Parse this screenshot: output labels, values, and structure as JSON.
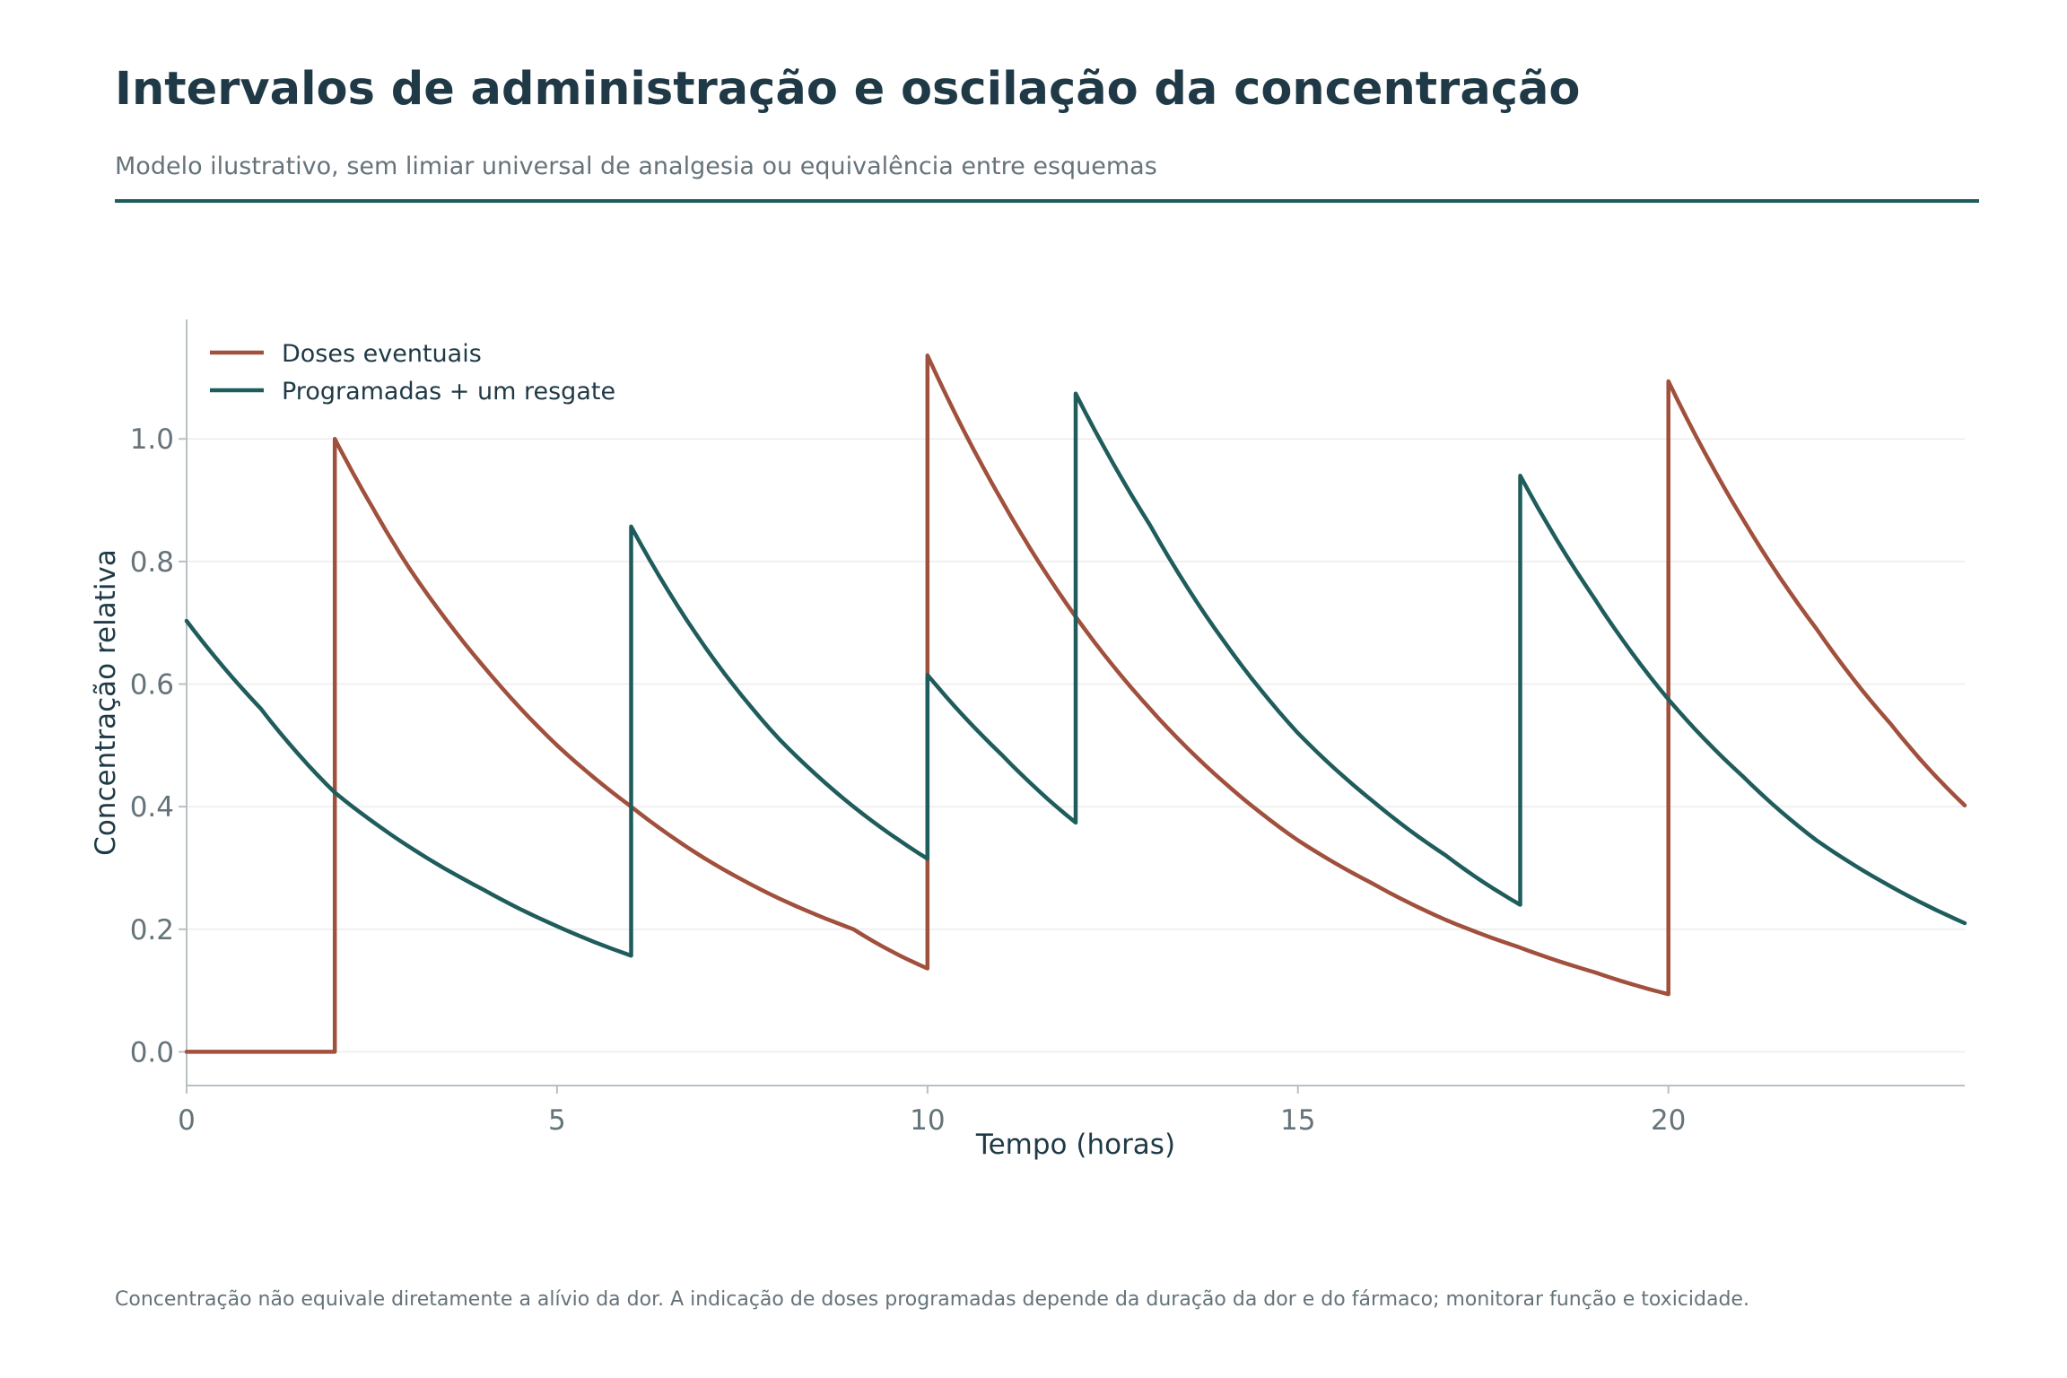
{
  "header": {
    "title": "Intervalos de administração e oscilação da concentração",
    "subtitle": "Modelo ilustrativo, sem limiar universal de analgesia ou equivalência entre esquemas"
  },
  "footnote": "Concentração não equivale diretamente a alívio da dor. A indicação de doses programadas depende da duração da dor e do fármaco; monitorar função e toxicidade.",
  "colors": {
    "doses_eventuais": "#a0503c",
    "programadas": "#1f5c5c",
    "title": "#1f3a46",
    "muted": "#65737a",
    "grid": "#ececec",
    "axis": "#b9c0c3"
  },
  "chart_data": {
    "type": "line",
    "xlabel": "Tempo (horas)",
    "ylabel": "Concentração relativa",
    "xlim": [
      0,
      24
    ],
    "ylim": [
      -0.055,
      1.195
    ],
    "xticks": [
      0,
      5,
      10,
      15,
      20
    ],
    "xtick_labels": [
      "0",
      "5",
      "10",
      "15",
      "20"
    ],
    "yticks": [
      0.0,
      0.2,
      0.4,
      0.6,
      0.8,
      1.0
    ],
    "ytick_labels": [
      "0.0",
      "0.2",
      "0.4",
      "0.6",
      "0.8",
      "1.0"
    ],
    "grid": "horizontal",
    "legend": "top-left",
    "series": [
      {
        "name": "Doses eventuais",
        "color": "#a0503c",
        "points": [
          [
            0,
            0.0
          ],
          [
            2,
            0.0
          ],
          [
            2,
            1.0
          ],
          [
            2.5,
            0.89
          ],
          [
            3,
            0.79
          ],
          [
            4,
            0.63
          ],
          [
            5,
            0.5
          ],
          [
            6,
            0.4
          ],
          [
            7,
            0.315
          ],
          [
            8,
            0.25
          ],
          [
            9,
            0.2
          ],
          [
            10,
            0.136
          ],
          [
            10,
            1.136
          ],
          [
            11,
            0.9
          ],
          [
            12,
            0.71
          ],
          [
            13,
            0.56
          ],
          [
            14,
            0.44
          ],
          [
            15,
            0.345
          ],
          [
            16,
            0.275
          ],
          [
            17,
            0.215
          ],
          [
            18,
            0.17
          ],
          [
            19,
            0.13
          ],
          [
            20,
            0.094
          ],
          [
            20,
            1.094
          ],
          [
            21,
            0.87
          ],
          [
            22,
            0.69
          ],
          [
            23,
            0.535
          ],
          [
            24,
            0.402
          ]
        ]
      },
      {
        "name": "Programadas + um resgate",
        "color": "#1f5c5c",
        "points": [
          [
            0,
            0.703
          ],
          [
            1,
            0.56
          ],
          [
            2,
            0.423
          ],
          [
            3,
            0.335
          ],
          [
            4,
            0.265
          ],
          [
            5,
            0.205
          ],
          [
            6,
            0.157
          ],
          [
            6,
            0.857
          ],
          [
            7,
            0.66
          ],
          [
            8,
            0.51
          ],
          [
            9,
            0.4
          ],
          [
            10,
            0.315
          ],
          [
            10,
            0.615
          ],
          [
            11,
            0.485
          ],
          [
            12,
            0.374
          ],
          [
            12,
            1.074
          ],
          [
            13,
            0.86
          ],
          [
            14,
            0.67
          ],
          [
            15,
            0.52
          ],
          [
            16,
            0.41
          ],
          [
            17,
            0.32
          ],
          [
            18,
            0.24
          ],
          [
            18,
            0.94
          ],
          [
            19,
            0.74
          ],
          [
            20,
            0.575
          ],
          [
            21,
            0.45
          ],
          [
            22,
            0.345
          ],
          [
            23,
            0.27
          ],
          [
            24,
            0.21
          ]
        ]
      }
    ]
  }
}
